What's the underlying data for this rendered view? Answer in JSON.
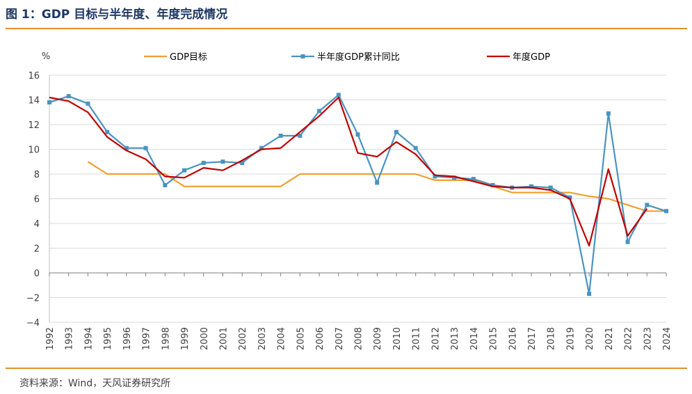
{
  "header": {
    "title": "图 1：GDP 目标与半年度、年度完成情况"
  },
  "footer": {
    "source": "资料来源：Wind，天风证券研究所"
  },
  "chart_data": {
    "type": "line",
    "title": "",
    "ylabel": "%",
    "ylim": [
      -4,
      16
    ],
    "yticks": [
      -4,
      -2,
      0,
      2,
      4,
      6,
      8,
      10,
      12,
      14,
      16
    ],
    "ytick_labels": [
      "−4",
      "−2",
      "0",
      "2",
      "4",
      "6",
      "8",
      "10",
      "12",
      "14",
      "16"
    ],
    "grid": true,
    "legend_position": "top",
    "x": [
      "1992",
      "1993",
      "1994",
      "1995",
      "1996",
      "1997",
      "1998",
      "1999",
      "2000",
      "2001",
      "2002",
      "2003",
      "2004",
      "2005",
      "2006",
      "2007",
      "2008",
      "2009",
      "2010",
      "2011",
      "2012",
      "2013",
      "2014",
      "2015",
      "2016",
      "2017",
      "2018",
      "2019",
      "2020",
      "2021",
      "2022",
      "2023",
      "2024"
    ],
    "series": [
      {
        "name": "GDP目标",
        "color": "#f0a030",
        "marker": "none",
        "values": [
          null,
          null,
          9,
          8,
          8,
          8,
          8,
          7,
          7,
          7,
          7,
          7,
          7,
          8,
          8,
          8,
          8,
          8,
          8,
          8,
          7.5,
          7.5,
          7.5,
          7,
          6.5,
          6.5,
          6.5,
          6.5,
          6.2,
          6,
          5.5,
          5,
          5
        ]
      },
      {
        "name": "半年度GDP累计同比",
        "color": "#4a93c0",
        "marker": "square",
        "values": [
          13.8,
          14.3,
          13.7,
          11.4,
          10.1,
          10.1,
          7.1,
          8.3,
          8.9,
          9.0,
          8.9,
          10.1,
          11.1,
          11.1,
          13.1,
          14.4,
          11.2,
          7.3,
          11.4,
          10.1,
          7.8,
          7.7,
          7.6,
          7.1,
          6.9,
          7.0,
          6.9,
          6.1,
          -1.7,
          12.9,
          2.5,
          5.5,
          5.0
        ]
      },
      {
        "name": "年度GDP",
        "color": "#c00000",
        "marker": "none",
        "values": [
          14.2,
          13.9,
          13.0,
          11.0,
          9.9,
          9.2,
          7.8,
          7.7,
          8.5,
          8.3,
          9.1,
          10.0,
          10.1,
          11.4,
          12.7,
          14.2,
          9.7,
          9.4,
          10.6,
          9.6,
          7.9,
          7.8,
          7.4,
          7.0,
          6.9,
          6.9,
          6.7,
          6.0,
          2.2,
          8.4,
          3.0,
          5.2,
          null
        ]
      }
    ]
  }
}
